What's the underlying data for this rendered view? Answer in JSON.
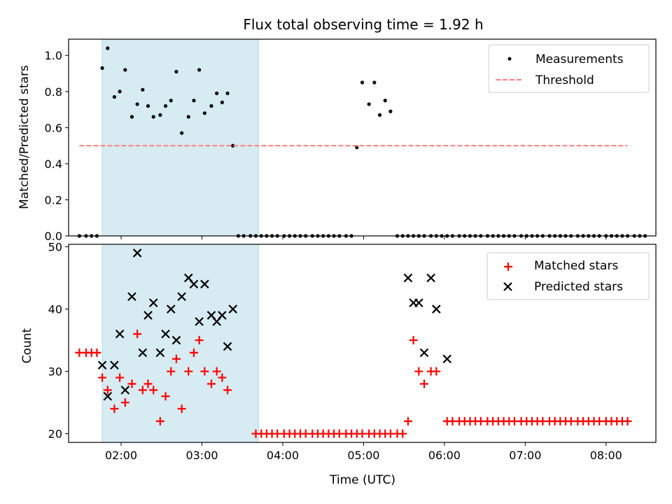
{
  "chart_data": [
    {
      "type": "scatter",
      "title": "Flux total observing time = 1.92 h",
      "xlabel": "",
      "ylabel": "Matched/Predicted stars",
      "xlim": [
        "01:21",
        "08:37"
      ],
      "ylim": [
        0.0,
        1.09
      ],
      "yticks": [
        0.0,
        0.2,
        0.4,
        0.6,
        0.8,
        1.0
      ],
      "ytick_labels": [
        "0.0",
        "0.2",
        "0.4",
        "0.6",
        "0.8",
        "1.0"
      ],
      "xticks": [
        "02:00",
        "03:00",
        "04:00",
        "05:00",
        "06:00",
        "07:00",
        "08:00"
      ],
      "shaded_region": {
        "x0": "01:46",
        "x1": "03:42",
        "color": "#add8e6"
      },
      "legend": {
        "position": "top-right",
        "entries": [
          "Measurements",
          "Threshold"
        ]
      },
      "series": [
        {
          "name": "Measurements",
          "marker": "dot",
          "color": "#000000",
          "points": [
            [
              "01:29",
              0.0
            ],
            [
              "01:34",
              0.0
            ],
            [
              "01:38",
              0.0
            ],
            [
              "01:42",
              0.0
            ],
            [
              "01:46",
              0.93
            ],
            [
              "01:50",
              1.04
            ],
            [
              "01:55",
              0.77
            ],
            [
              "01:59",
              0.8
            ],
            [
              "02:03",
              0.92
            ],
            [
              "02:08",
              0.66
            ],
            [
              "02:12",
              0.73
            ],
            [
              "02:16",
              0.81
            ],
            [
              "02:20",
              0.72
            ],
            [
              "02:24",
              0.66
            ],
            [
              "02:29",
              0.67
            ],
            [
              "02:33",
              0.72
            ],
            [
              "02:37",
              0.75
            ],
            [
              "02:41",
              0.91
            ],
            [
              "02:45",
              0.57
            ],
            [
              "02:50",
              0.66
            ],
            [
              "02:54",
              0.75
            ],
            [
              "02:58",
              0.92
            ],
            [
              "03:02",
              0.68
            ],
            [
              "03:07",
              0.72
            ],
            [
              "03:11",
              0.79
            ],
            [
              "03:15",
              0.74
            ],
            [
              "03:19",
              0.79
            ],
            [
              "03:23",
              0.5
            ],
            [
              "03:27",
              0.0
            ],
            [
              "03:31",
              0.0
            ],
            [
              "03:36",
              0.0
            ],
            [
              "03:40",
              0.0
            ],
            [
              "03:44",
              0.0
            ],
            [
              "03:48",
              0.0
            ],
            [
              "03:52",
              0.0
            ],
            [
              "03:56",
              0.0
            ],
            [
              "04:01",
              0.0
            ],
            [
              "04:05",
              0.0
            ],
            [
              "04:09",
              0.0
            ],
            [
              "04:13",
              0.0
            ],
            [
              "04:17",
              0.0
            ],
            [
              "04:22",
              0.0
            ],
            [
              "04:26",
              0.0
            ],
            [
              "04:30",
              0.0
            ],
            [
              "04:34",
              0.0
            ],
            [
              "04:38",
              0.0
            ],
            [
              "04:42",
              0.0
            ],
            [
              "04:47",
              0.0
            ],
            [
              "04:51",
              0.0
            ],
            [
              "04:55",
              0.49
            ],
            [
              "04:59",
              0.85
            ],
            [
              "05:04",
              0.73
            ],
            [
              "05:08",
              0.85
            ],
            [
              "05:12",
              0.67
            ],
            [
              "05:16",
              0.75
            ],
            [
              "05:20",
              0.69
            ],
            [
              "05:25",
              0.0
            ],
            [
              "05:29",
              0.0
            ],
            [
              "05:33",
              0.0
            ],
            [
              "05:37",
              0.0
            ],
            [
              "05:41",
              0.0
            ],
            [
              "05:45",
              0.0
            ],
            [
              "05:50",
              0.0
            ],
            [
              "05:54",
              0.0
            ],
            [
              "05:58",
              0.0
            ],
            [
              "06:02",
              0.0
            ],
            [
              "06:06",
              0.0
            ],
            [
              "06:11",
              0.0
            ],
            [
              "06:15",
              0.0
            ],
            [
              "06:19",
              0.0
            ],
            [
              "06:23",
              0.0
            ],
            [
              "06:27",
              0.0
            ],
            [
              "06:32",
              0.0
            ],
            [
              "06:36",
              0.0
            ],
            [
              "06:40",
              0.0
            ],
            [
              "06:44",
              0.0
            ],
            [
              "06:48",
              0.0
            ],
            [
              "06:52",
              0.0
            ],
            [
              "06:57",
              0.0
            ],
            [
              "07:01",
              0.0
            ],
            [
              "07:05",
              0.0
            ],
            [
              "07:09",
              0.0
            ],
            [
              "07:13",
              0.0
            ],
            [
              "07:18",
              0.0
            ],
            [
              "07:22",
              0.0
            ],
            [
              "07:26",
              0.0
            ],
            [
              "07:30",
              0.0
            ],
            [
              "07:34",
              0.0
            ],
            [
              "07:39",
              0.0
            ],
            [
              "07:43",
              0.0
            ],
            [
              "07:47",
              0.0
            ],
            [
              "07:51",
              0.0
            ],
            [
              "07:55",
              0.0
            ],
            [
              "08:00",
              0.0
            ],
            [
              "08:04",
              0.0
            ],
            [
              "08:08",
              0.0
            ],
            [
              "08:12",
              0.0
            ],
            [
              "08:16",
              0.0
            ],
            [
              "08:21",
              0.0
            ],
            [
              "08:25",
              0.0
            ],
            [
              "08:29",
              0.0
            ]
          ]
        },
        {
          "name": "Threshold",
          "marker": "dashed-line",
          "color": "#ff7f7f",
          "points": [
            [
              "01:29",
              0.5
            ],
            [
              "08:16",
              0.5
            ]
          ]
        }
      ]
    },
    {
      "type": "scatter",
      "title": "",
      "xlabel": "Time (UTC)",
      "ylabel": "Count",
      "xlim": [
        "01:21",
        "08:37"
      ],
      "ylim": [
        18.6,
        50.4
      ],
      "yticks": [
        20,
        30,
        40,
        50
      ],
      "ytick_labels": [
        "20",
        "30",
        "40",
        "50"
      ],
      "xticks": [
        "02:00",
        "03:00",
        "04:00",
        "05:00",
        "06:00",
        "07:00",
        "08:00"
      ],
      "xtick_labels": [
        "02:00",
        "03:00",
        "04:00",
        "05:00",
        "06:00",
        "07:00",
        "08:00"
      ],
      "shaded_region": {
        "x0": "01:46",
        "x1": "03:42",
        "color": "#add8e6"
      },
      "legend": {
        "position": "top-right",
        "entries": [
          "Matched stars",
          "Predicted stars"
        ]
      },
      "series": [
        {
          "name": "Matched stars",
          "marker": "plus",
          "color": "#ff0000",
          "points": [
            [
              "01:29",
              33
            ],
            [
              "01:34",
              33
            ],
            [
              "01:38",
              33
            ],
            [
              "01:42",
              33
            ],
            [
              "01:46",
              29
            ],
            [
              "01:50",
              27
            ],
            [
              "01:55",
              24
            ],
            [
              "01:59",
              29
            ],
            [
              "02:03",
              25
            ],
            [
              "02:08",
              28
            ],
            [
              "02:12",
              36
            ],
            [
              "02:16",
              27
            ],
            [
              "02:20",
              28
            ],
            [
              "02:24",
              27
            ],
            [
              "02:29",
              22
            ],
            [
              "02:33",
              26
            ],
            [
              "02:37",
              30
            ],
            [
              "02:41",
              32
            ],
            [
              "02:45",
              24
            ],
            [
              "02:50",
              30
            ],
            [
              "02:54",
              33
            ],
            [
              "02:58",
              35
            ],
            [
              "03:02",
              30
            ],
            [
              "03:07",
              28
            ],
            [
              "03:11",
              30
            ],
            [
              "03:15",
              29
            ],
            [
              "03:19",
              27
            ],
            [
              "03:40",
              20
            ],
            [
              "03:44",
              20
            ],
            [
              "03:48",
              20
            ],
            [
              "03:52",
              20
            ],
            [
              "03:56",
              20
            ],
            [
              "04:01",
              20
            ],
            [
              "04:05",
              20
            ],
            [
              "04:09",
              20
            ],
            [
              "04:13",
              20
            ],
            [
              "04:17",
              20
            ],
            [
              "04:22",
              20
            ],
            [
              "04:26",
              20
            ],
            [
              "04:30",
              20
            ],
            [
              "04:34",
              20
            ],
            [
              "04:38",
              20
            ],
            [
              "04:42",
              20
            ],
            [
              "04:47",
              20
            ],
            [
              "04:51",
              20
            ],
            [
              "04:55",
              20
            ],
            [
              "04:59",
              20
            ],
            [
              "05:04",
              20
            ],
            [
              "05:08",
              20
            ],
            [
              "05:12",
              20
            ],
            [
              "05:16",
              20
            ],
            [
              "05:20",
              20
            ],
            [
              "05:25",
              20
            ],
            [
              "05:29",
              20
            ],
            [
              "05:33",
              22
            ],
            [
              "05:37",
              35
            ],
            [
              "05:41",
              30
            ],
            [
              "05:45",
              28
            ],
            [
              "05:50",
              30
            ],
            [
              "05:54",
              30
            ],
            [
              "06:02",
              22
            ],
            [
              "06:06",
              22
            ],
            [
              "06:11",
              22
            ],
            [
              "06:15",
              22
            ],
            [
              "06:19",
              22
            ],
            [
              "06:23",
              22
            ],
            [
              "06:27",
              22
            ],
            [
              "06:32",
              22
            ],
            [
              "06:36",
              22
            ],
            [
              "06:40",
              22
            ],
            [
              "06:44",
              22
            ],
            [
              "06:48",
              22
            ],
            [
              "06:52",
              22
            ],
            [
              "06:57",
              22
            ],
            [
              "07:01",
              22
            ],
            [
              "07:05",
              22
            ],
            [
              "07:09",
              22
            ],
            [
              "07:13",
              22
            ],
            [
              "07:18",
              22
            ],
            [
              "07:22",
              22
            ],
            [
              "07:26",
              22
            ],
            [
              "07:30",
              22
            ],
            [
              "07:34",
              22
            ],
            [
              "07:39",
              22
            ],
            [
              "07:43",
              22
            ],
            [
              "07:47",
              22
            ],
            [
              "07:51",
              22
            ],
            [
              "07:55",
              22
            ],
            [
              "08:00",
              22
            ],
            [
              "08:04",
              22
            ],
            [
              "08:08",
              22
            ],
            [
              "08:12",
              22
            ],
            [
              "08:16",
              22
            ]
          ]
        },
        {
          "name": "Predicted stars",
          "marker": "x",
          "color": "#000000",
          "points": [
            [
              "01:46",
              31
            ],
            [
              "01:50",
              26
            ],
            [
              "01:55",
              31
            ],
            [
              "01:59",
              36
            ],
            [
              "02:03",
              27
            ],
            [
              "02:08",
              42
            ],
            [
              "02:12",
              49
            ],
            [
              "02:16",
              33
            ],
            [
              "02:20",
              39
            ],
            [
              "02:24",
              41
            ],
            [
              "02:29",
              33
            ],
            [
              "02:33",
              36
            ],
            [
              "02:37",
              40
            ],
            [
              "02:41",
              35
            ],
            [
              "02:45",
              42
            ],
            [
              "02:50",
              45
            ],
            [
              "02:54",
              44
            ],
            [
              "02:58",
              38
            ],
            [
              "03:02",
              44
            ],
            [
              "03:07",
              39
            ],
            [
              "03:11",
              38
            ],
            [
              "03:15",
              39
            ],
            [
              "03:19",
              34
            ],
            [
              "03:23",
              40
            ],
            [
              "05:33",
              45
            ],
            [
              "05:37",
              41
            ],
            [
              "05:41",
              41
            ],
            [
              "05:45",
              33
            ],
            [
              "05:50",
              45
            ],
            [
              "05:54",
              40
            ],
            [
              "06:02",
              32
            ]
          ]
        }
      ]
    }
  ]
}
